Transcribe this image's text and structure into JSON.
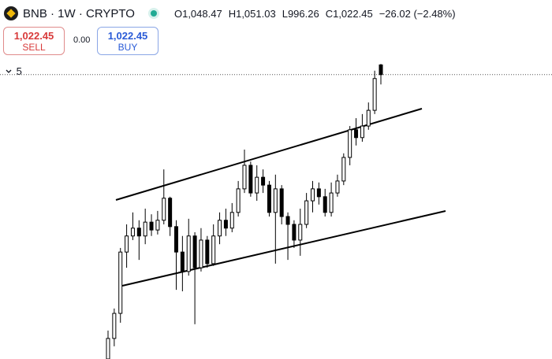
{
  "header": {
    "symbol": "BNB · 1W · CRYPTO",
    "ohlc": [
      {
        "label": "O",
        "value": "1,048.47"
      },
      {
        "label": "H",
        "value": "1,051.03"
      },
      {
        "label": "L",
        "value": "996.26"
      },
      {
        "label": "C",
        "value": "1,022.45"
      }
    ],
    "change": "−26.02 (−2.48%)",
    "sell": {
      "price": "1,022.45",
      "label": "SELL"
    },
    "spread": "0.00",
    "buy": {
      "price": "1,022.45",
      "label": "BUY"
    },
    "indicators_count": "5"
  },
  "chart_data": {
    "type": "candlestick",
    "open": [
      262,
      317,
      384,
      548,
      591,
      612,
      591,
      628,
      607,
      633,
      692,
      616,
      548,
      496,
      591,
      506,
      580,
      517,
      591,
      633,
      612,
      654,
      717,
      780,
      706,
      748,
      727,
      654,
      717,
      643,
      622,
      580,
      622,
      685,
      717,
      696,
      654,
      706,
      738,
      801,
      875,
      854,
      885,
      927,
      1048.47
    ],
    "high": [
      338,
      397,
      559,
      622,
      654,
      633,
      664,
      649,
      658,
      769,
      696,
      633,
      591,
      637,
      601,
      612,
      591,
      622,
      654,
      664,
      679,
      738,
      822,
      790,
      780,
      769,
      738,
      755,
      727,
      654,
      633,
      664,
      706,
      738,
      734,
      717,
      734,
      755,
      812,
      885,
      906,
      917,
      948,
      1033,
      1051.03
    ],
    "low": [
      262,
      296,
      359,
      506,
      580,
      527,
      569,
      591,
      595,
      622,
      591,
      447,
      443,
      485,
      355,
      496,
      506,
      511,
      569,
      591,
      601,
      643,
      706,
      696,
      685,
      706,
      643,
      517,
      622,
      527,
      559,
      538,
      612,
      654,
      675,
      643,
      643,
      696,
      727,
      780,
      833,
      843,
      875,
      917,
      996.26
    ],
    "close": [
      317,
      384,
      548,
      591,
      612,
      591,
      628,
      607,
      633,
      692,
      616,
      548,
      496,
      591,
      506,
      580,
      517,
      591,
      633,
      612,
      654,
      717,
      780,
      706,
      748,
      727,
      654,
      717,
      643,
      622,
      580,
      622,
      685,
      717,
      696,
      654,
      706,
      738,
      801,
      875,
      854,
      885,
      927,
      1012,
      1022.45
    ],
    "ylim": [
      262,
      1222
    ],
    "up_color": "#ffffff",
    "down_color": "#000000",
    "border_color": "#000000"
  }
}
